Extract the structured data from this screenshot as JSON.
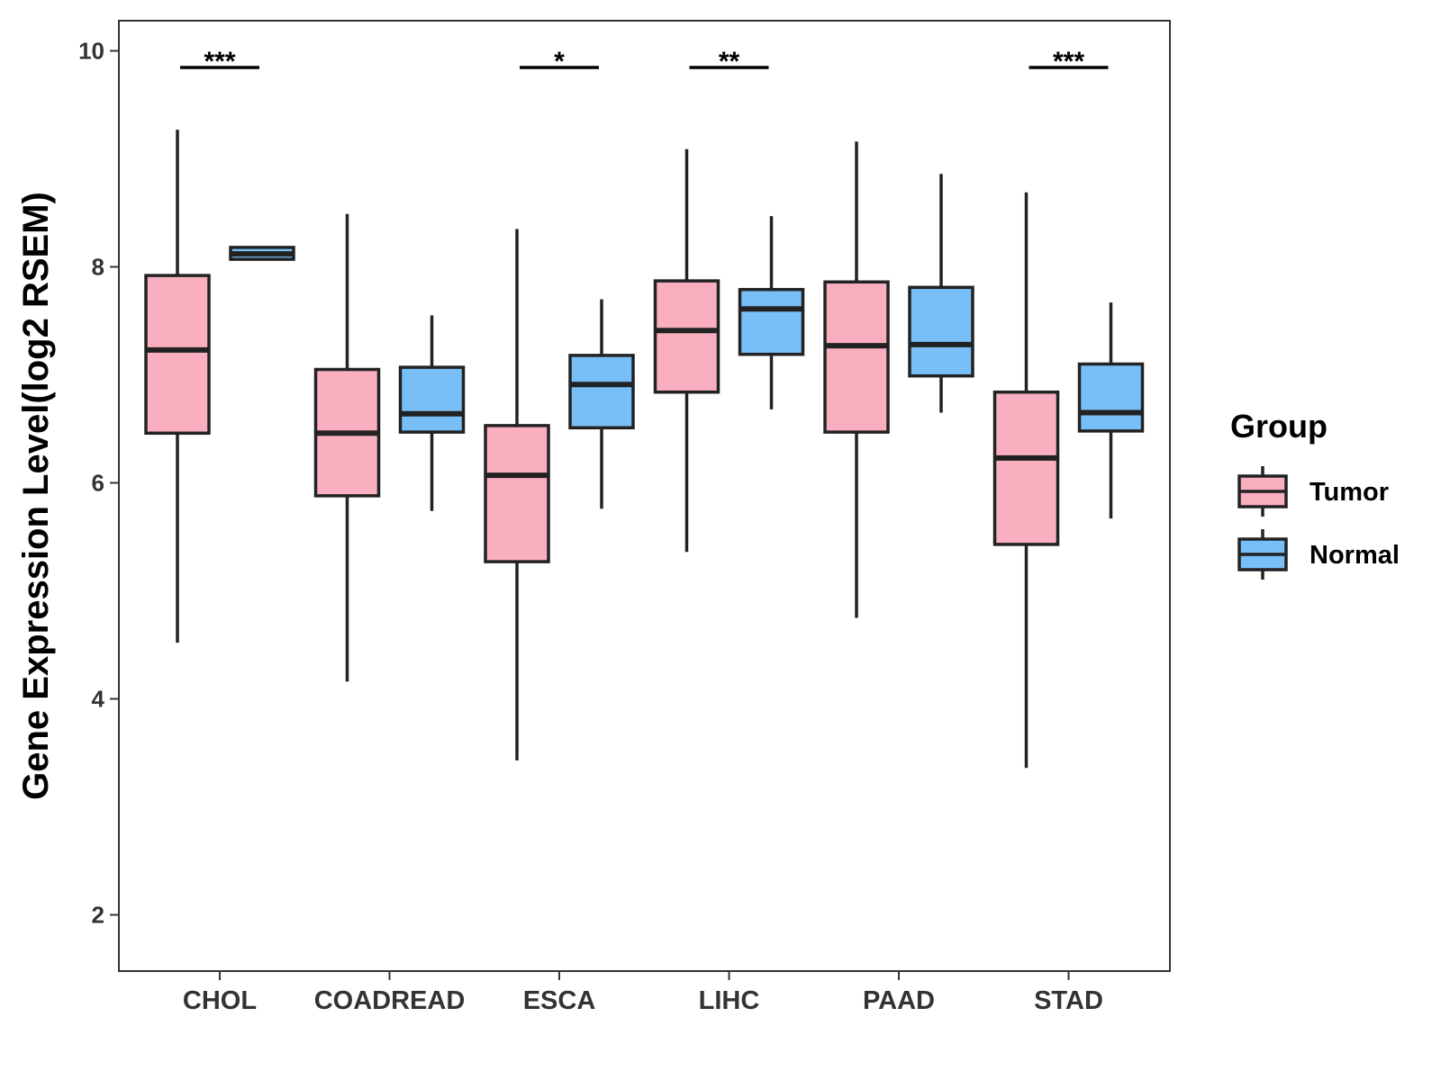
{
  "chart_data": {
    "type": "boxplot",
    "title": "",
    "xlabel": "",
    "ylabel": "Gene Expression Level(log2 RSEM)",
    "ylim": [
      1.5,
      10.3
    ],
    "yticks": [
      2,
      4,
      6,
      8,
      10
    ],
    "categories": [
      "CHOL",
      "COADREAD",
      "ESCA",
      "LIHC",
      "PAAD",
      "STAD"
    ],
    "legend": {
      "title": "Group",
      "placement": "right",
      "entries": [
        {
          "name": "Tumor",
          "color": "#F9AFC0"
        },
        {
          "name": "Normal",
          "color": "#78BEF7"
        }
      ]
    },
    "series": [
      {
        "name": "Tumor",
        "color": "#F9AFC0",
        "boxes": [
          {
            "min": 4.52,
            "q1": 6.46,
            "median": 7.23,
            "q3": 7.92,
            "max": 9.27
          },
          {
            "min": 4.16,
            "q1": 5.88,
            "median": 6.46,
            "q3": 7.05,
            "max": 8.49
          },
          {
            "min": 3.43,
            "q1": 5.27,
            "median": 6.07,
            "q3": 6.53,
            "max": 8.35
          },
          {
            "min": 5.36,
            "q1": 6.84,
            "median": 7.41,
            "q3": 7.87,
            "max": 9.09
          },
          {
            "min": 4.75,
            "q1": 6.47,
            "median": 7.27,
            "q3": 7.86,
            "max": 9.16
          },
          {
            "min": 3.36,
            "q1": 5.43,
            "median": 6.23,
            "q3": 6.84,
            "max": 8.69
          }
        ]
      },
      {
        "name": "Normal",
        "color": "#78BEF7",
        "boxes": [
          {
            "min": 8.07,
            "q1": 8.07,
            "median": 8.12,
            "q3": 8.18,
            "max": 8.18
          },
          {
            "min": 5.74,
            "q1": 6.47,
            "median": 6.64,
            "q3": 7.07,
            "max": 7.55
          },
          {
            "min": 5.76,
            "q1": 6.51,
            "median": 6.91,
            "q3": 7.18,
            "max": 7.7
          },
          {
            "min": 6.68,
            "q1": 7.19,
            "median": 7.61,
            "q3": 7.79,
            "max": 8.47
          },
          {
            "min": 6.65,
            "q1": 6.99,
            "median": 7.28,
            "q3": 7.81,
            "max": 8.86
          },
          {
            "min": 5.67,
            "q1": 6.48,
            "median": 6.65,
            "q3": 7.1,
            "max": 7.67
          }
        ]
      }
    ],
    "annotations": [
      {
        "category": "CHOL",
        "text": "***"
      },
      {
        "category": "COADREAD",
        "text": ""
      },
      {
        "category": "ESCA",
        "text": "*"
      },
      {
        "category": "LIHC",
        "text": "**"
      },
      {
        "category": "PAAD",
        "text": ""
      },
      {
        "category": "STAD",
        "text": "***"
      }
    ]
  }
}
